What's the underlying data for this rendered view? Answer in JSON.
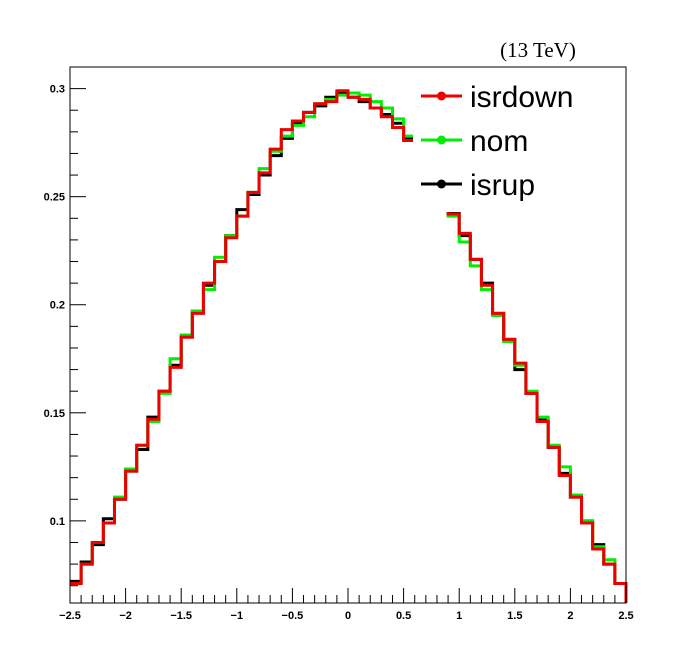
{
  "chart_data": {
    "type": "line",
    "title": "",
    "annotation": "(13 TeV)",
    "xlabel": "",
    "ylabel": "",
    "xlim": [
      -2.5,
      2.5
    ],
    "ylim": [
      0.062,
      0.31
    ],
    "x_ticks": [
      -2.5,
      -2,
      -1.5,
      -1,
      -0.5,
      0,
      0.5,
      1,
      1.5,
      2,
      2.5
    ],
    "x_tick_labels": [
      "−2.5",
      "−2",
      "−1.5",
      "−1",
      "−0.5",
      "0",
      "0.5",
      "1",
      "1.5",
      "2",
      "2.5"
    ],
    "y_ticks": [
      0.1,
      0.15,
      0.2,
      0.25,
      0.3
    ],
    "y_tick_labels": [
      "0.1",
      "0.15",
      "0.2",
      "0.25",
      "0.3"
    ],
    "bin_edges": [
      -2.5,
      -2.4,
      -2.3,
      -2.2,
      -2.1,
      -2.0,
      -1.9,
      -1.8,
      -1.7,
      -1.6,
      -1.5,
      -1.4,
      -1.3,
      -1.2,
      -1.1,
      -1.0,
      -0.9,
      -0.8,
      -0.7,
      -0.6,
      -0.5,
      -0.4,
      -0.3,
      -0.2,
      -0.1,
      0.0,
      0.1,
      0.2,
      0.3,
      0.4,
      0.5,
      0.6,
      0.7,
      0.8,
      0.9,
      1.0,
      1.1,
      1.2,
      1.3,
      1.4,
      1.5,
      1.6,
      1.7,
      1.8,
      1.9,
      2.0,
      2.1,
      2.2,
      2.3,
      2.4,
      2.5
    ],
    "legend_position": "top-right",
    "series": [
      {
        "name": "isrup",
        "color": "#000000",
        "values": [
          0.072,
          0.081,
          0.089,
          0.101,
          0.11,
          0.123,
          0.133,
          0.148,
          0.16,
          0.172,
          0.185,
          0.197,
          0.209,
          0.22,
          0.232,
          0.244,
          0.251,
          0.26,
          0.269,
          0.277,
          0.284,
          0.289,
          0.292,
          0.296,
          0.298,
          0.296,
          0.294,
          0.291,
          0.288,
          0.284,
          0.277,
          0.269,
          0.262,
          0.254,
          0.243,
          0.232,
          0.221,
          0.21,
          0.196,
          0.184,
          0.17,
          0.159,
          0.147,
          0.134,
          0.122,
          0.111,
          0.1,
          0.089,
          0.08,
          0.071
        ]
      },
      {
        "name": "nom",
        "color": "#00ee00",
        "values": [
          0.071,
          0.08,
          0.09,
          0.099,
          0.111,
          0.124,
          0.135,
          0.146,
          0.159,
          0.175,
          0.186,
          0.197,
          0.207,
          0.222,
          0.232,
          0.241,
          0.252,
          0.263,
          0.271,
          0.278,
          0.283,
          0.287,
          0.293,
          0.295,
          0.297,
          0.298,
          0.297,
          0.294,
          0.291,
          0.286,
          0.278,
          0.271,
          0.262,
          0.252,
          0.241,
          0.229,
          0.218,
          0.207,
          0.195,
          0.183,
          0.172,
          0.16,
          0.148,
          0.135,
          0.125,
          0.112,
          0.1,
          0.088,
          0.082,
          0.071
        ]
      },
      {
        "name": "isrdown",
        "color": "#ee0000",
        "values": [
          0.071,
          0.08,
          0.09,
          0.099,
          0.11,
          0.123,
          0.135,
          0.147,
          0.16,
          0.171,
          0.185,
          0.196,
          0.21,
          0.22,
          0.231,
          0.241,
          0.252,
          0.261,
          0.272,
          0.281,
          0.285,
          0.289,
          0.293,
          0.294,
          0.299,
          0.296,
          0.295,
          0.291,
          0.287,
          0.282,
          0.276,
          0.271,
          0.261,
          0.251,
          0.242,
          0.233,
          0.221,
          0.209,
          0.196,
          0.184,
          0.173,
          0.159,
          0.146,
          0.134,
          0.121,
          0.111,
          0.099,
          0.087,
          0.08,
          0.071
        ]
      }
    ],
    "legend_order": [
      "isrdown",
      "nom",
      "isrup"
    ]
  }
}
